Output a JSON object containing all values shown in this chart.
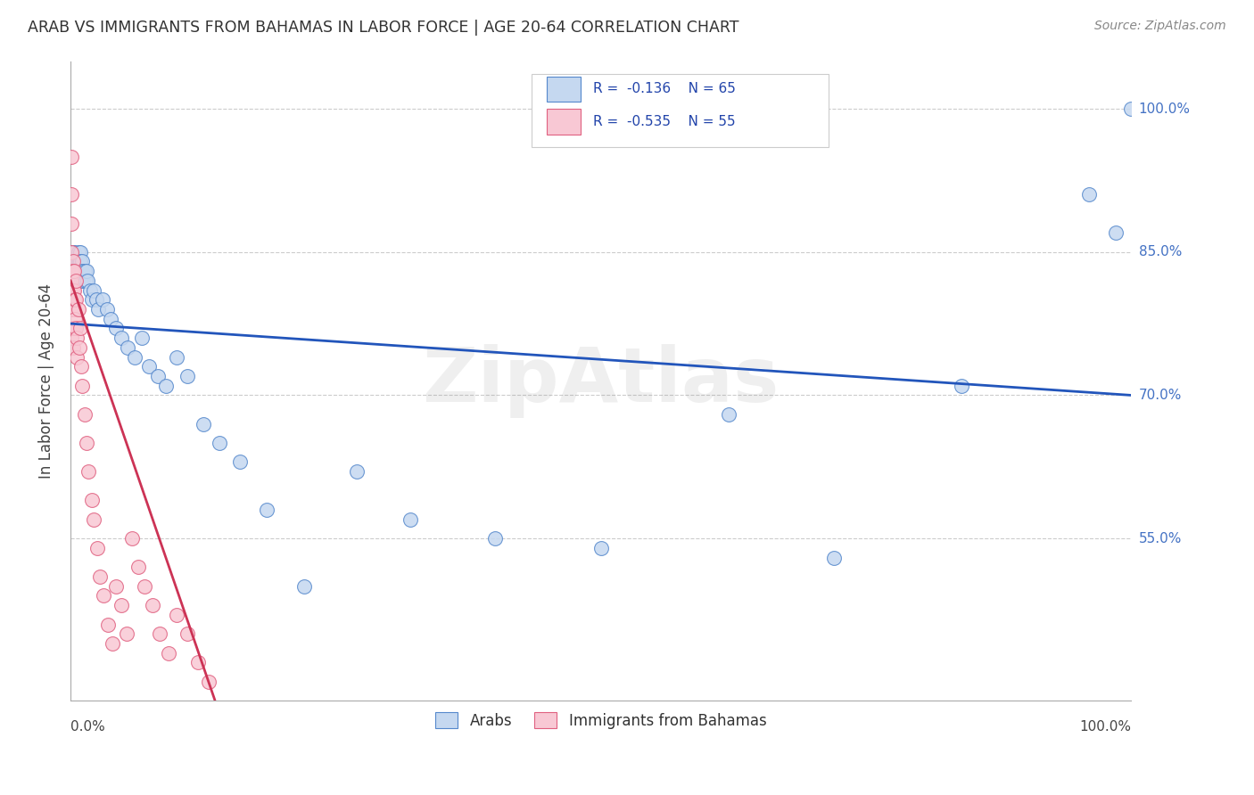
{
  "title": "ARAB VS IMMIGRANTS FROM BAHAMAS IN LABOR FORCE | AGE 20-64 CORRELATION CHART",
  "source": "Source: ZipAtlas.com",
  "ylabel": "In Labor Force | Age 20-64",
  "legend_label_1": "Arabs",
  "legend_label_2": "Immigrants from Bahamas",
  "R_arab": -0.136,
  "N_arab": 65,
  "R_bahamas": -0.535,
  "N_bahamas": 55,
  "color_arab_fill": "#c5d8f0",
  "color_arab_edge": "#5588cc",
  "color_bahamas_fill": "#f8c8d4",
  "color_bahamas_edge": "#e06080",
  "color_arab_line": "#2255bb",
  "color_bahamas_line": "#cc3355",
  "ytick_labels": [
    "100.0%",
    "85.0%",
    "70.0%",
    "55.0%"
  ],
  "ytick_values": [
    1.0,
    0.85,
    0.7,
    0.55
  ],
  "xlim": [
    0.0,
    1.0
  ],
  "ylim": [
    0.38,
    1.05
  ],
  "watermark": "ZipAtlas",
  "arab_x": [
    0.001,
    0.001,
    0.002,
    0.002,
    0.002,
    0.003,
    0.003,
    0.003,
    0.004,
    0.004,
    0.004,
    0.005,
    0.005,
    0.005,
    0.006,
    0.006,
    0.007,
    0.007,
    0.007,
    0.008,
    0.008,
    0.009,
    0.009,
    0.01,
    0.01,
    0.011,
    0.011,
    0.012,
    0.013,
    0.014,
    0.015,
    0.016,
    0.018,
    0.02,
    0.022,
    0.024,
    0.026,
    0.03,
    0.034,
    0.038,
    0.043,
    0.048,
    0.054,
    0.06,
    0.067,
    0.074,
    0.082,
    0.09,
    0.1,
    0.11,
    0.125,
    0.14,
    0.16,
    0.185,
    0.22,
    0.27,
    0.32,
    0.4,
    0.5,
    0.62,
    0.72,
    0.84,
    0.96,
    0.985,
    1.0
  ],
  "arab_y": [
    0.83,
    0.84,
    0.85,
    0.84,
    0.83,
    0.85,
    0.84,
    0.83,
    0.84,
    0.83,
    0.82,
    0.84,
    0.83,
    0.82,
    0.84,
    0.83,
    0.85,
    0.84,
    0.83,
    0.84,
    0.83,
    0.85,
    0.84,
    0.83,
    0.82,
    0.84,
    0.83,
    0.82,
    0.83,
    0.82,
    0.83,
    0.82,
    0.81,
    0.8,
    0.81,
    0.8,
    0.79,
    0.8,
    0.79,
    0.78,
    0.77,
    0.76,
    0.75,
    0.74,
    0.76,
    0.73,
    0.72,
    0.71,
    0.74,
    0.72,
    0.67,
    0.65,
    0.63,
    0.58,
    0.5,
    0.62,
    0.57,
    0.55,
    0.54,
    0.68,
    0.53,
    0.71,
    0.91,
    0.87,
    1.0
  ],
  "bahamas_x": [
    0.001,
    0.001,
    0.001,
    0.001,
    0.001,
    0.001,
    0.001,
    0.001,
    0.001,
    0.001,
    0.002,
    0.002,
    0.002,
    0.002,
    0.002,
    0.002,
    0.003,
    0.003,
    0.003,
    0.003,
    0.004,
    0.004,
    0.005,
    0.005,
    0.005,
    0.006,
    0.006,
    0.007,
    0.008,
    0.009,
    0.01,
    0.011,
    0.013,
    0.015,
    0.017,
    0.02,
    0.022,
    0.025,
    0.028,
    0.031,
    0.035,
    0.039,
    0.043,
    0.048,
    0.053,
    0.058,
    0.064,
    0.07,
    0.077,
    0.084,
    0.092,
    0.1,
    0.11,
    0.12,
    0.13
  ],
  "bahamas_y": [
    0.95,
    0.91,
    0.88,
    0.85,
    0.83,
    0.82,
    0.8,
    0.79,
    0.77,
    0.76,
    0.84,
    0.83,
    0.81,
    0.79,
    0.77,
    0.75,
    0.83,
    0.81,
    0.79,
    0.77,
    0.8,
    0.78,
    0.82,
    0.8,
    0.77,
    0.76,
    0.74,
    0.79,
    0.75,
    0.77,
    0.73,
    0.71,
    0.68,
    0.65,
    0.62,
    0.59,
    0.57,
    0.54,
    0.51,
    0.49,
    0.46,
    0.44,
    0.5,
    0.48,
    0.45,
    0.55,
    0.52,
    0.5,
    0.48,
    0.45,
    0.43,
    0.47,
    0.45,
    0.42,
    0.4
  ]
}
